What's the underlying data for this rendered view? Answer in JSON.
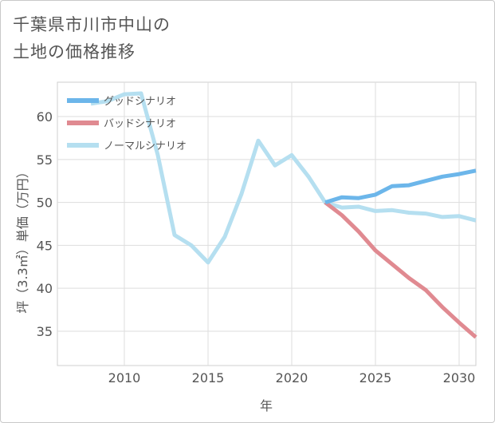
{
  "title_lines": [
    "千葉県市川市中山の",
    "土地の価格推移"
  ],
  "chart_data": {
    "type": "line",
    "xlabel": "年",
    "ylabel": "坪（3.3㎡）単価（万円）",
    "xlim": [
      2006,
      2031
    ],
    "ylim": [
      31,
      64
    ],
    "xticks": [
      2010,
      2015,
      2020,
      2025,
      2030
    ],
    "yticks": [
      35,
      40,
      45,
      50,
      55,
      60
    ],
    "grid": true,
    "legend_position": "top-left",
    "series": [
      {
        "name": "グッドシナリオ",
        "color": "#6cb6ea",
        "x": [
          2022,
          2023,
          2024,
          2025,
          2026,
          2027,
          2028,
          2029,
          2030,
          2031
        ],
        "y": [
          50.0,
          50.6,
          50.5,
          50.9,
          51.9,
          52.0,
          52.5,
          53.0,
          53.3,
          53.7
        ]
      },
      {
        "name": "バッドシナリオ",
        "color": "#e08a91",
        "x": [
          2022,
          2023,
          2024,
          2025,
          2026,
          2027,
          2028,
          2029,
          2030,
          2031
        ],
        "y": [
          50.0,
          48.5,
          46.6,
          44.4,
          42.8,
          41.2,
          39.8,
          37.8,
          36.0,
          34.3
        ]
      },
      {
        "name": "ノーマルシナリオ",
        "color": "#b5dff0",
        "x": [
          2008,
          2009,
          2010,
          2011,
          2012,
          2013,
          2014,
          2015,
          2016,
          2017,
          2018,
          2019,
          2020,
          2021,
          2022,
          2023,
          2024,
          2025,
          2026,
          2027,
          2028,
          2029,
          2030,
          2031
        ],
        "y": [
          61.5,
          61.8,
          62.6,
          62.7,
          55.5,
          46.2,
          45.0,
          43.0,
          46.0,
          51.0,
          57.2,
          54.3,
          55.5,
          53.0,
          50.0,
          49.4,
          49.5,
          49.0,
          49.1,
          48.8,
          48.7,
          48.3,
          48.4,
          47.9
        ]
      }
    ]
  }
}
